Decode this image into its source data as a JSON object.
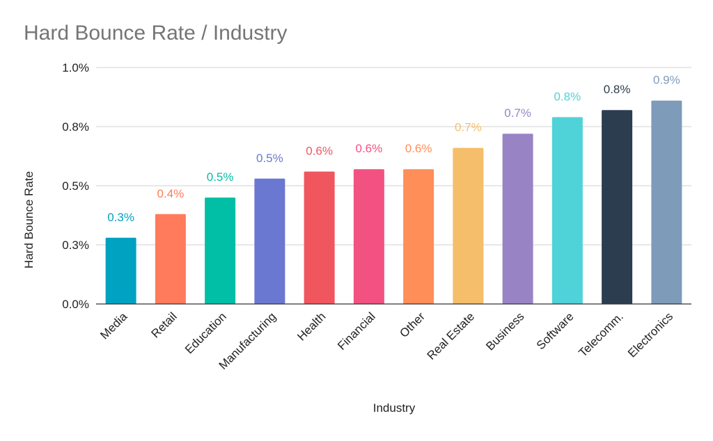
{
  "chart_data": {
    "type": "bar",
    "title": "Hard Bounce Rate / Industry",
    "xlabel": "Industry",
    "ylabel": "Hard Bounce Rate",
    "categories": [
      "Media",
      "Retail",
      "Education",
      "Manufacturing",
      "Health",
      "Financial",
      "Other",
      "Real Estate",
      "Business",
      "Software",
      "Telecomm.",
      "Electronics"
    ],
    "values": [
      0.28,
      0.38,
      0.45,
      0.53,
      0.56,
      0.57,
      0.57,
      0.66,
      0.72,
      0.79,
      0.82,
      0.86
    ],
    "value_labels": [
      "0.3%",
      "0.4%",
      "0.5%",
      "0.5%",
      "0.6%",
      "0.6%",
      "0.6%",
      "0.7%",
      "0.7%",
      "0.8%",
      "0.8%",
      "0.9%"
    ],
    "colors": [
      "#00a2c1",
      "#ff7b5b",
      "#00bfa6",
      "#6b78d1",
      "#f0565e",
      "#f25282",
      "#ff8e58",
      "#f5be6b",
      "#9884c4",
      "#4fd3d9",
      "#2d3d50",
      "#7f9bba"
    ],
    "yticks": [
      0,
      0.25,
      0.5,
      0.75,
      1.0
    ],
    "ytick_labels": [
      "0.0%",
      "0.3%",
      "0.5%",
      "0.8%",
      "1.0%"
    ],
    "ylim": [
      0,
      1.0
    ],
    "grid": true,
    "legend": "none"
  }
}
